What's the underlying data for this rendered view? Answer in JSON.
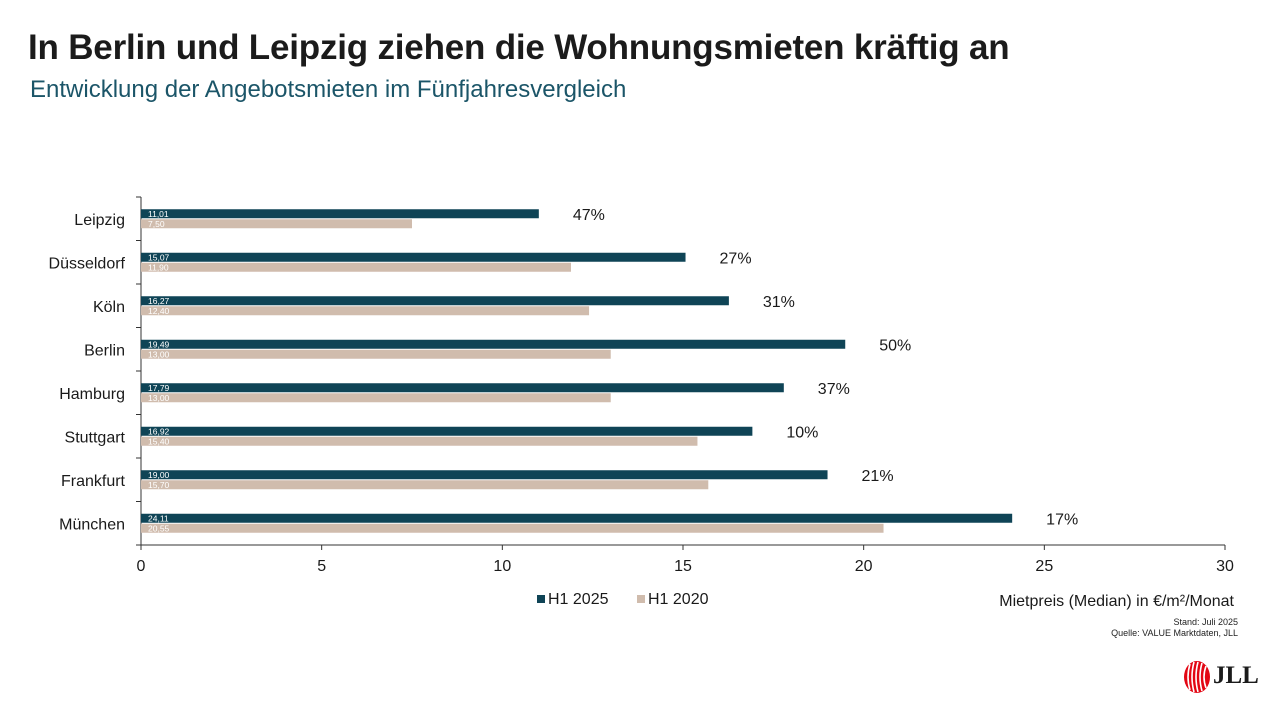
{
  "title": "In Berlin und Leipzig ziehen die Wohnungsmieten kräftig an",
  "subtitle": "Entwicklung der Angebotsmieten im Fünfjahresvergleich",
  "colors": {
    "h1_2025": "#0f4456",
    "h1_2020": "#d0bcad",
    "axis": "#333333"
  },
  "chart_data": {
    "type": "bar",
    "orientation": "horizontal",
    "categories": [
      "Leipzig",
      "Düsseldorf",
      "Köln",
      "Berlin",
      "Hamburg",
      "Stuttgart",
      "Frankfurt",
      "München"
    ],
    "series": [
      {
        "name": "H1 2025",
        "values": [
          11.01,
          15.07,
          16.27,
          19.49,
          17.79,
          16.92,
          19.0,
          24.11
        ],
        "labels": [
          "11,01",
          "15,07",
          "16,27",
          "19,49",
          "17,79",
          "16,92",
          "19,00",
          "24,11"
        ]
      },
      {
        "name": "H1 2020",
        "values": [
          7.5,
          11.9,
          12.4,
          13.0,
          13.0,
          15.4,
          15.7,
          20.55
        ],
        "labels": [
          "7,50",
          "11,90",
          "12,40",
          "13,00",
          "13,00",
          "15,40",
          "15,70",
          "20,55"
        ]
      }
    ],
    "change_labels": [
      "47%",
      "27%",
      "31%",
      "50%",
      "37%",
      "10%",
      "21%",
      "17%"
    ],
    "xlim": [
      0,
      30
    ],
    "xticks": [
      0,
      5,
      10,
      15,
      20,
      25,
      30
    ],
    "xlabel": "Mietpreis (Median) in €/m²/Monat",
    "legend_position": "bottom"
  },
  "source": {
    "stand": "Stand: Juli 2025",
    "quelle": "Quelle: VALUE Marktdaten, JLL"
  },
  "logo": {
    "text": "JLL"
  }
}
